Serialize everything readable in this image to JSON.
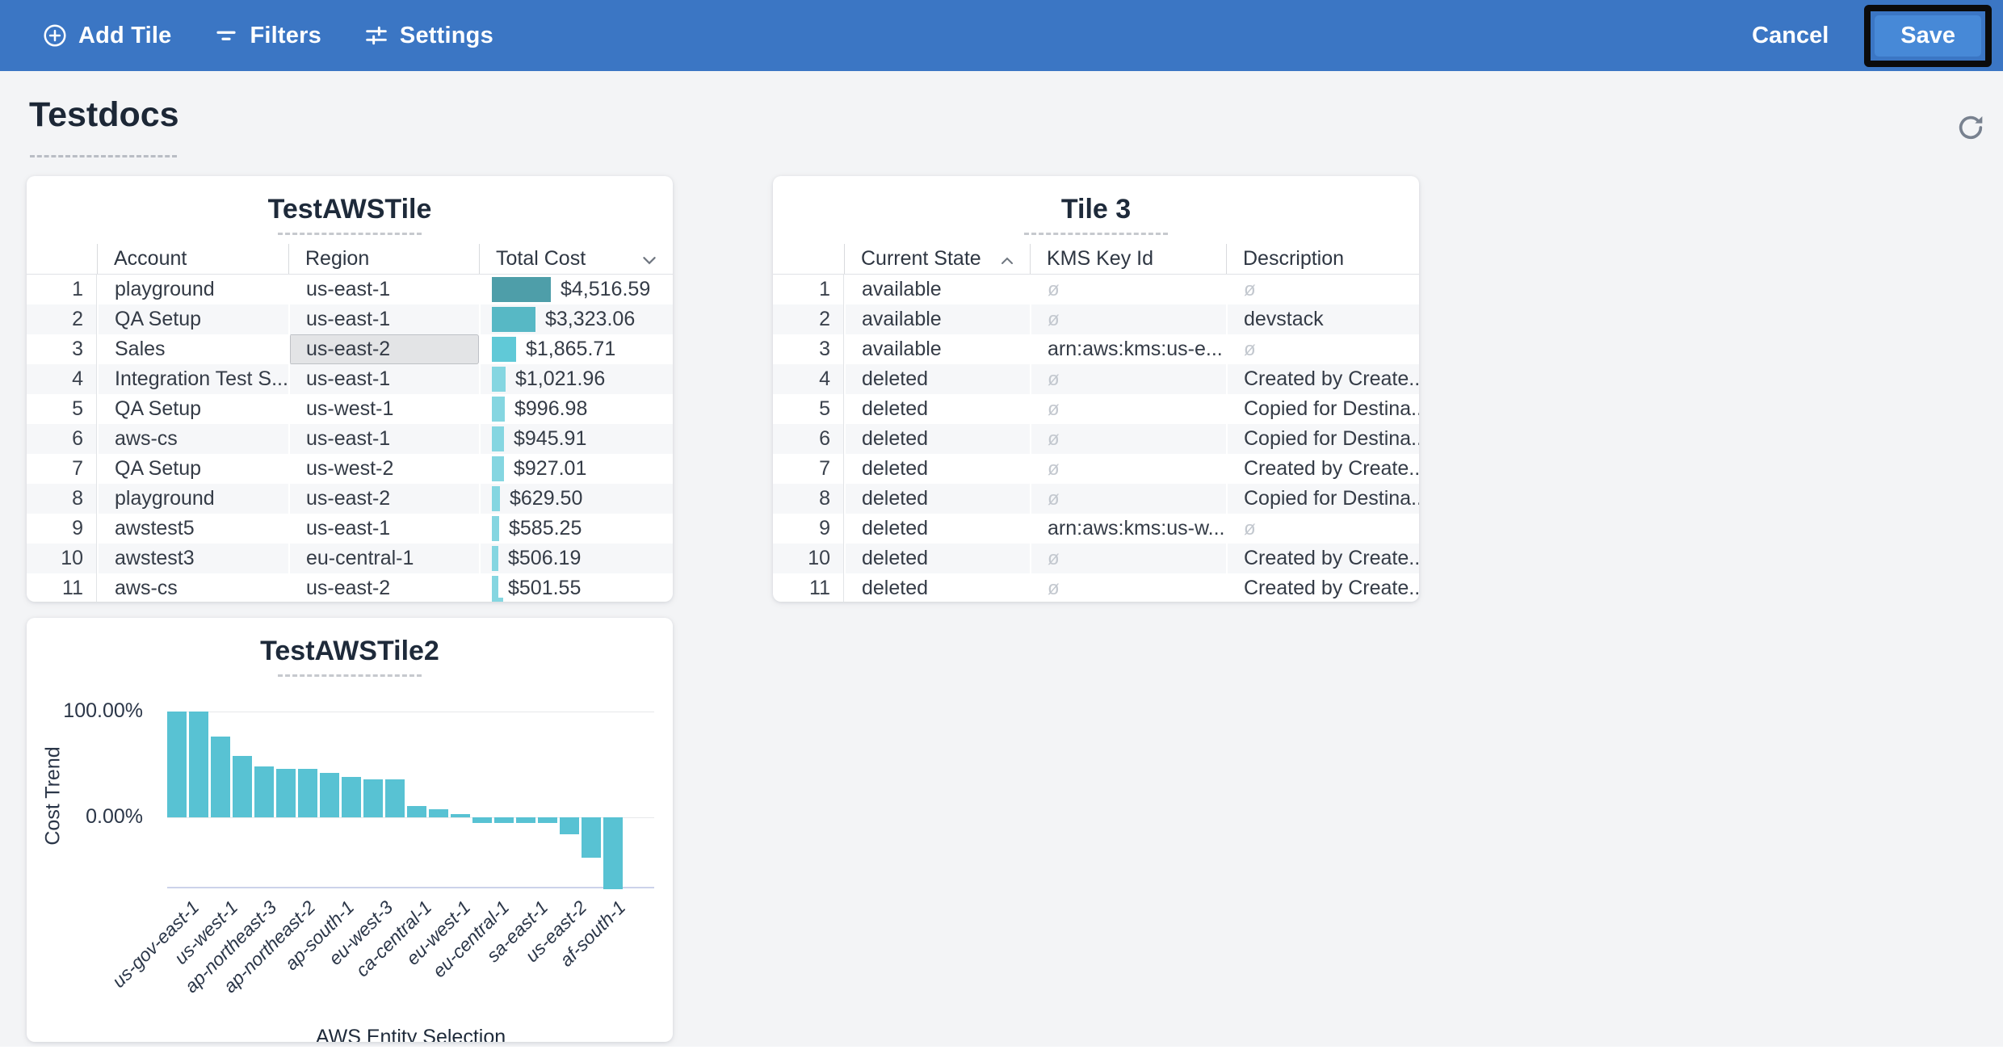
{
  "toolbar": {
    "add_tile": "Add Tile",
    "filters": "Filters",
    "settings": "Settings",
    "cancel": "Cancel",
    "save": "Save"
  },
  "page": {
    "title": "Testdocs"
  },
  "icons": {
    "add_tile": "circle-plus-icon",
    "filters": "filter-lines-icon",
    "settings": "sliders-icon",
    "refresh": "refresh-icon",
    "sort_descending": "chevron-down-icon",
    "sort_ascending": "chevron-up-icon",
    "null_symbol": "ø"
  },
  "colors": {
    "toolbar_blue": "#3b76c4",
    "save_button_blue": "#4789d7",
    "chart_bar_teal": "#58c2d3",
    "cost_bar_colors": [
      "#4e9ea9",
      "#57b8c5",
      "#60c9d7",
      "#85d6e1"
    ],
    "selected_cell_bg": "#e3e4e6"
  },
  "tile_test_aws": {
    "title": "TestAWSTile",
    "columns": [
      "Account",
      "Region",
      "Total Cost"
    ],
    "sort": {
      "column": "Total Cost",
      "direction": "descending"
    },
    "selected_cell": {
      "row": 3,
      "column": "Region",
      "value": "us-east-2"
    },
    "max_cost_value": 4516.59,
    "rows": [
      {
        "n": "1",
        "account": "playground",
        "region": "us-east-1",
        "cost": "$4,516.59",
        "value": 4516.59
      },
      {
        "n": "2",
        "account": "QA Setup",
        "region": "us-east-1",
        "cost": "$3,323.06",
        "value": 3323.06
      },
      {
        "n": "3",
        "account": "Sales",
        "region": "us-east-2",
        "cost": "$1,865.71",
        "value": 1865.71
      },
      {
        "n": "4",
        "account": "Integration Test S...",
        "region": "us-east-1",
        "cost": "$1,021.96",
        "value": 1021.96
      },
      {
        "n": "5",
        "account": "QA Setup",
        "region": "us-west-1",
        "cost": "$996.98",
        "value": 996.98
      },
      {
        "n": "6",
        "account": "aws-cs",
        "region": "us-east-1",
        "cost": "$945.91",
        "value": 945.91
      },
      {
        "n": "7",
        "account": "QA Setup",
        "region": "us-west-2",
        "cost": "$927.01",
        "value": 927.01
      },
      {
        "n": "8",
        "account": "playground",
        "region": "us-east-2",
        "cost": "$629.50",
        "value": 629.5
      },
      {
        "n": "9",
        "account": "awstest5",
        "region": "us-east-1",
        "cost": "$585.25",
        "value": 585.25
      },
      {
        "n": "10",
        "account": "awstest3",
        "region": "eu-central-1",
        "cost": "$506.19",
        "value": 506.19
      },
      {
        "n": "11",
        "account": "aws-cs",
        "region": "us-east-2",
        "cost": "$501.55",
        "value": 501.55
      }
    ]
  },
  "tile_3": {
    "title": "Tile 3",
    "columns": [
      "Current State",
      "KMS Key Id",
      "Description"
    ],
    "sort": {
      "column": "Current State",
      "direction": "ascending"
    },
    "null_symbol": "ø",
    "rows": [
      {
        "n": "1",
        "state": "available",
        "kms": null,
        "description": null
      },
      {
        "n": "2",
        "state": "available",
        "kms": null,
        "description": "devstack"
      },
      {
        "n": "3",
        "state": "available",
        "kms": "arn:aws:kms:us-e...",
        "description": null
      },
      {
        "n": "4",
        "state": "deleted",
        "kms": null,
        "description": "Created by Create..."
      },
      {
        "n": "5",
        "state": "deleted",
        "kms": null,
        "description": "Copied for Destina..."
      },
      {
        "n": "6",
        "state": "deleted",
        "kms": null,
        "description": "Copied for Destina..."
      },
      {
        "n": "7",
        "state": "deleted",
        "kms": null,
        "description": "Created by Create..."
      },
      {
        "n": "8",
        "state": "deleted",
        "kms": null,
        "description": "Copied for Destina..."
      },
      {
        "n": "9",
        "state": "deleted",
        "kms": "arn:aws:kms:us-w...",
        "description": null
      },
      {
        "n": "10",
        "state": "deleted",
        "kms": null,
        "description": "Created by Create..."
      },
      {
        "n": "11",
        "state": "deleted",
        "kms": null,
        "description": "Created by Create..."
      }
    ]
  },
  "chart_data": {
    "type": "bar",
    "title": "TestAWSTile2",
    "ylabel": "Cost Trend",
    "xlabel": "AWS Entity Selection",
    "y_tick_labels": [
      "100.00%",
      "0.00%"
    ],
    "ylim": [
      -75,
      110
    ],
    "grid": "horizontal",
    "legend": false,
    "values_percent": [
      100,
      100,
      76,
      58,
      48,
      46,
      46,
      42,
      38,
      36,
      36,
      11,
      8,
      3,
      -5,
      -5,
      -5,
      -5,
      -16,
      -38,
      -68
    ],
    "x_tick_labels": [
      "us-gov-east-1",
      "us-west-1",
      "ap-northeast-3",
      "ap-northeast-2",
      "ap-south-1",
      "eu-west-3",
      "ca-central-1",
      "eu-west-1",
      "eu-central-1",
      "sa-east-1",
      "us-east-2",
      "af-south-1"
    ]
  }
}
